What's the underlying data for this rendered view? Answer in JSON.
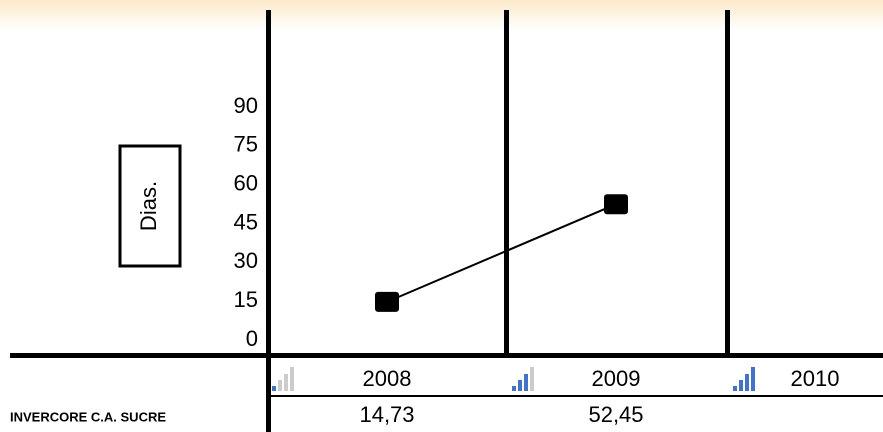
{
  "chart_data": {
    "type": "line",
    "y_label": "Dias.",
    "categories": [
      "2008",
      "2009",
      "2010"
    ],
    "series": [
      {
        "name": "INVERCORE C.A. SUCRE",
        "color": "#000000",
        "values": [
          14.73,
          52.45,
          null
        ],
        "value_labels": [
          "14,73",
          "52,45",
          null
        ]
      }
    ],
    "ylim": [
      0,
      90
    ],
    "yticks": [
      0,
      15,
      30,
      45,
      60,
      75,
      90
    ]
  }
}
